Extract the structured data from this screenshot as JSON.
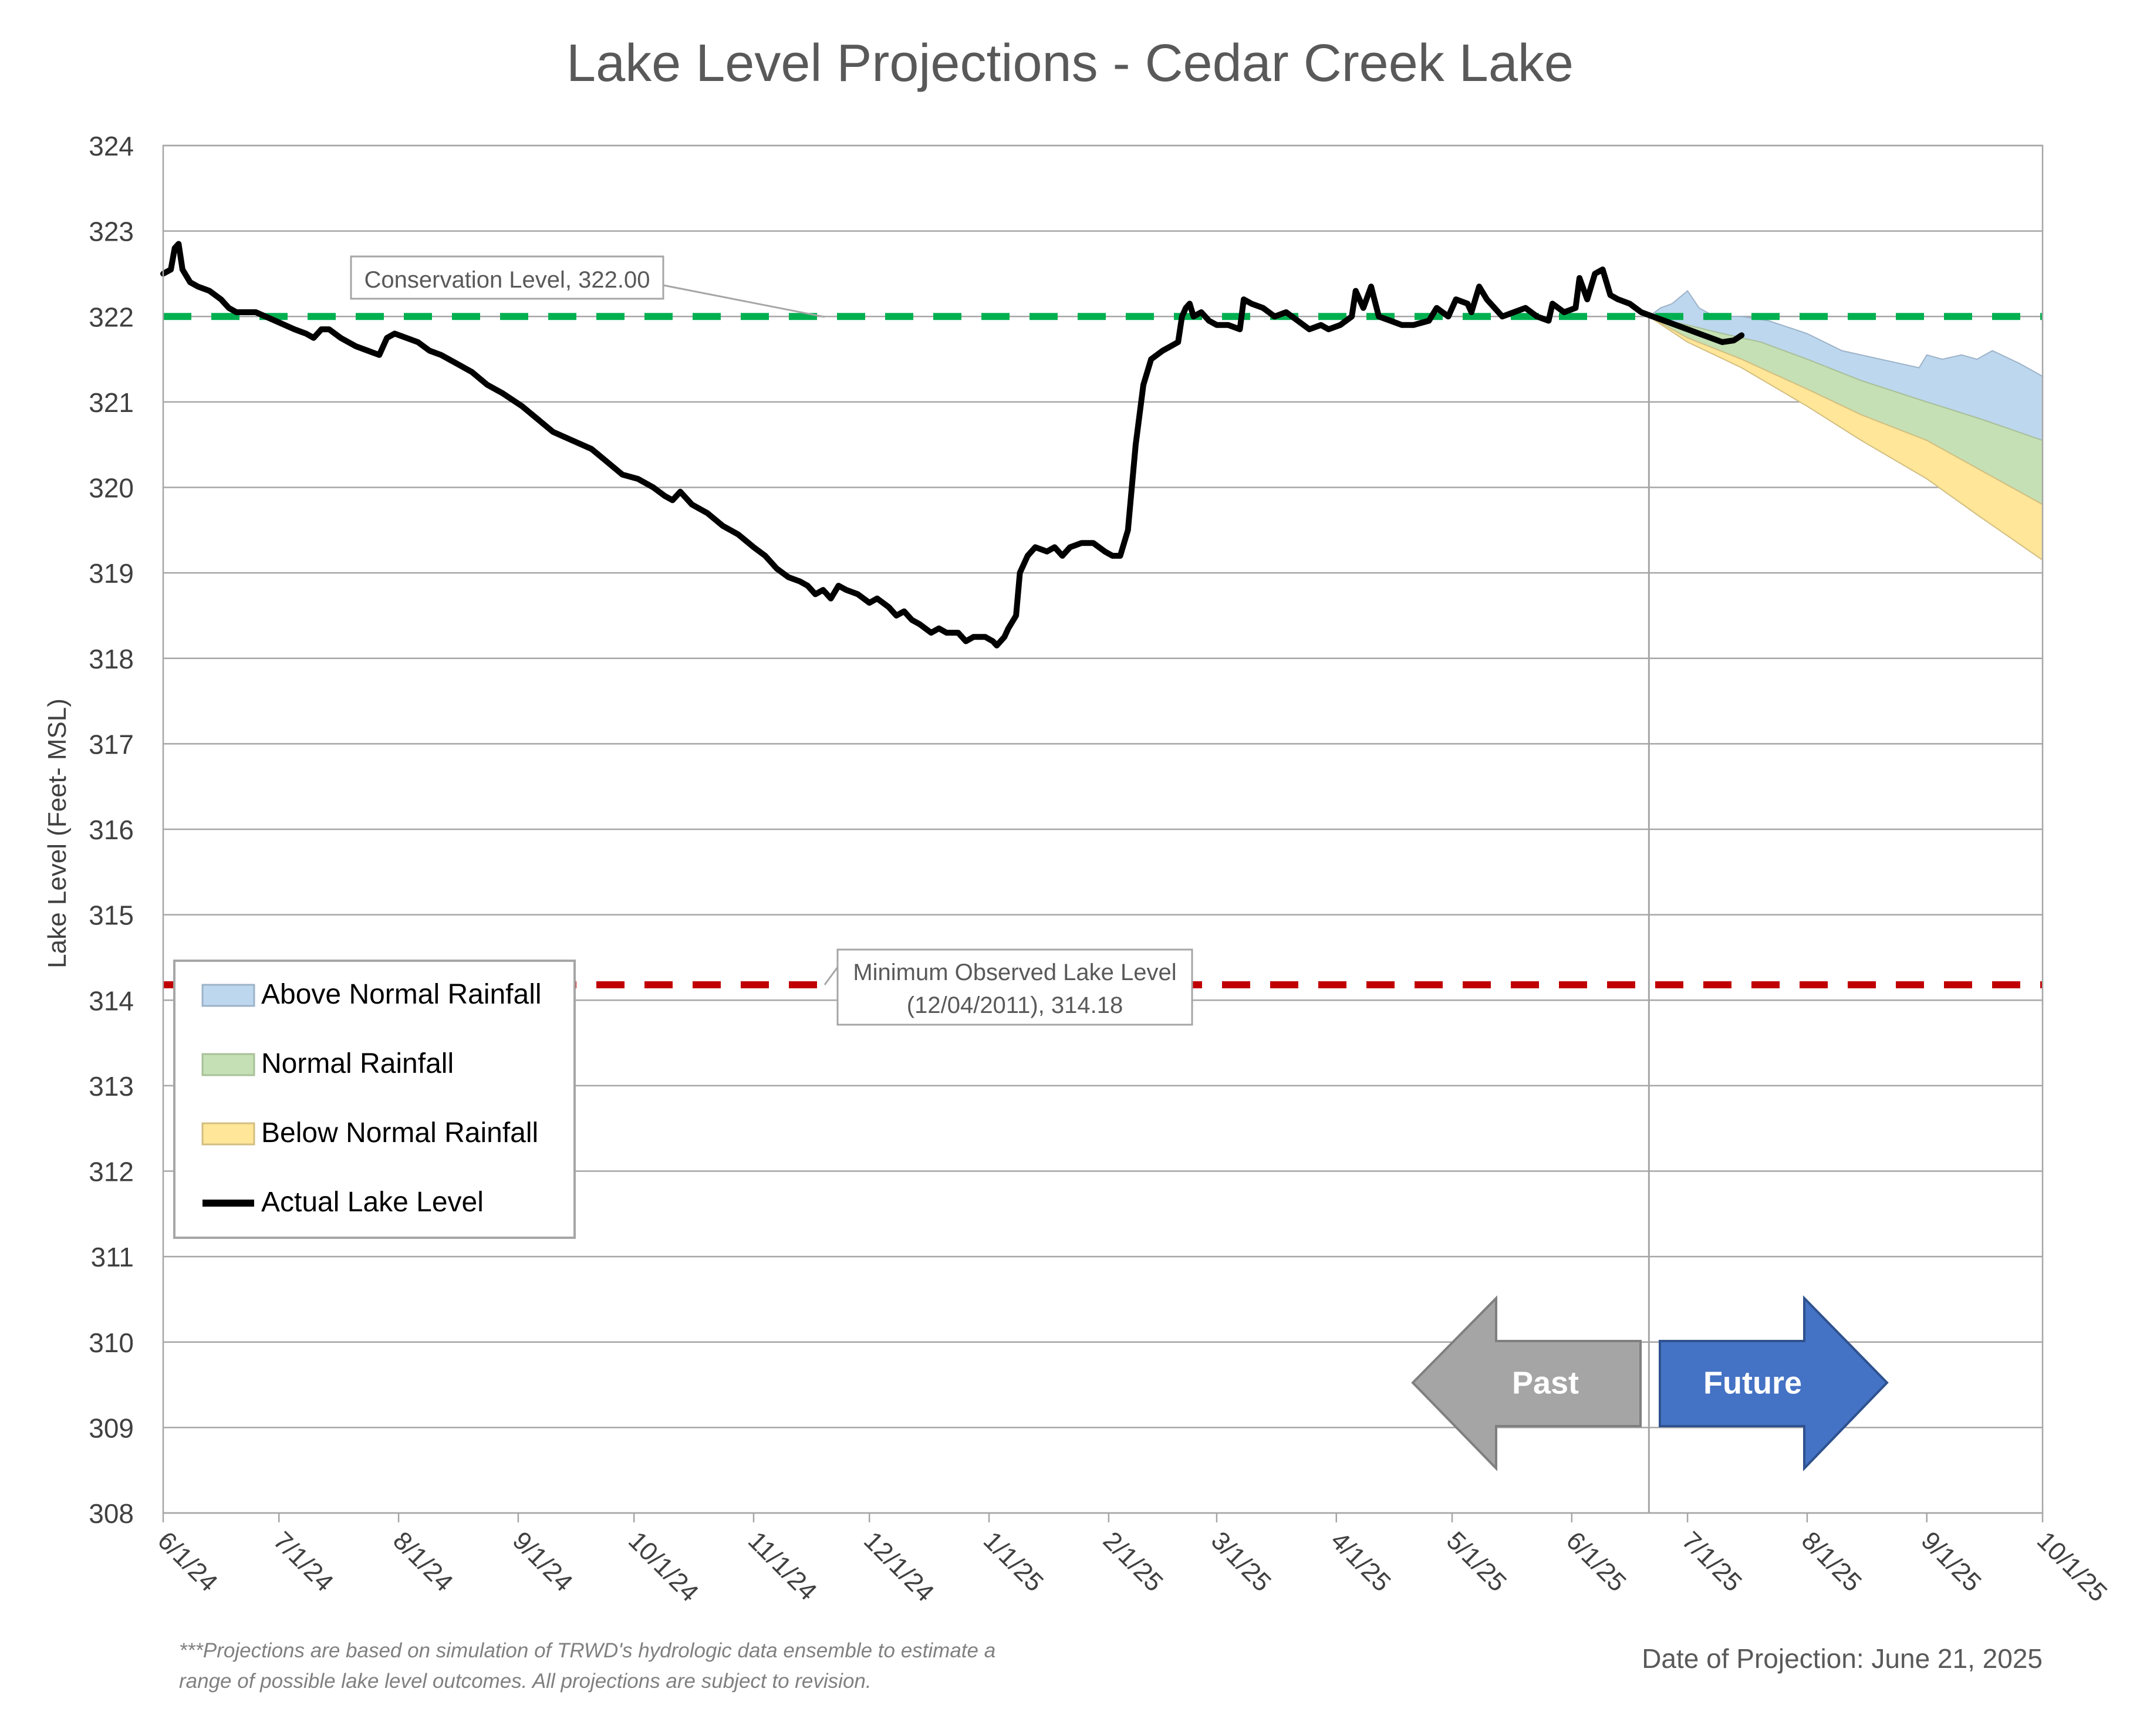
{
  "chart_data": {
    "type": "line",
    "title": "Lake Level Projections - Cedar Creek Lake",
    "ylabel": "Lake Level (Feet- MSL)",
    "xlabel": "",
    "ylim": [
      308,
      324
    ],
    "y_ticks": [
      308,
      309,
      310,
      311,
      312,
      313,
      314,
      315,
      316,
      317,
      318,
      319,
      320,
      321,
      322,
      323,
      324
    ],
    "x_range": [
      "2024-06-01",
      "2025-10-01"
    ],
    "x_ticks": [
      {
        "date": "2024-06-01",
        "label": "6/1/24"
      },
      {
        "date": "2024-07-01",
        "label": "7/1/24"
      },
      {
        "date": "2024-08-01",
        "label": "8/1/24"
      },
      {
        "date": "2024-09-01",
        "label": "9/1/24"
      },
      {
        "date": "2024-10-01",
        "label": "10/1/24"
      },
      {
        "date": "2024-11-01",
        "label": "11/1/24"
      },
      {
        "date": "2024-12-01",
        "label": "12/1/24"
      },
      {
        "date": "2025-01-01",
        "label": "1/1/25"
      },
      {
        "date": "2025-02-01",
        "label": "2/1/25"
      },
      {
        "date": "2025-03-01",
        "label": "3/1/25"
      },
      {
        "date": "2025-04-01",
        "label": "4/1/25"
      },
      {
        "date": "2025-05-01",
        "label": "5/1/25"
      },
      {
        "date": "2025-06-01",
        "label": "6/1/25"
      },
      {
        "date": "2025-07-01",
        "label": "7/1/25"
      },
      {
        "date": "2025-08-01",
        "label": "8/1/25"
      },
      {
        "date": "2025-09-01",
        "label": "9/1/25"
      },
      {
        "date": "2025-10-01",
        "label": "10/1/25"
      }
    ],
    "grid": true,
    "projection_date": "2025-06-21",
    "reference_lines": [
      {
        "id": "conservation",
        "value": 322.0,
        "color": "#00B050",
        "label": "Conservation Level, 322.00"
      },
      {
        "id": "minimum",
        "value": 314.18,
        "color": "#C00000",
        "label": "Minimum Observed Lake Level (12/04/2011), 314.18",
        "label_lines": [
          "Minimum Observed Lake Level",
          "(12/04/2011), 314.18"
        ]
      }
    ],
    "bands": [
      {
        "name": "Above Normal Rainfall",
        "color": "#BDD7EE",
        "stroke": "#9DB3C8",
        "upper": [
          [
            "2025-06-21",
            322.0
          ],
          [
            "2025-06-24",
            322.1
          ],
          [
            "2025-06-27",
            322.15
          ],
          [
            "2025-07-01",
            322.3
          ],
          [
            "2025-07-04",
            322.1
          ],
          [
            "2025-07-08",
            322.0
          ],
          [
            "2025-07-15",
            322.0
          ],
          [
            "2025-07-22",
            321.95
          ],
          [
            "2025-08-01",
            321.8
          ],
          [
            "2025-08-10",
            321.6
          ],
          [
            "2025-08-20",
            321.5
          ],
          [
            "2025-08-25",
            321.45
          ],
          [
            "2025-08-30",
            321.4
          ],
          [
            "2025-09-01",
            321.55
          ],
          [
            "2025-09-05",
            321.5
          ],
          [
            "2025-09-10",
            321.55
          ],
          [
            "2025-09-14",
            321.5
          ],
          [
            "2025-09-18",
            321.6
          ],
          [
            "2025-09-25",
            321.45
          ],
          [
            "2025-10-01",
            321.3
          ]
        ],
        "lower": [
          [
            "2025-06-21",
            322.0
          ],
          [
            "2025-07-01",
            321.9
          ],
          [
            "2025-07-10",
            321.8
          ],
          [
            "2025-07-20",
            321.7
          ],
          [
            "2025-08-01",
            321.5
          ],
          [
            "2025-08-15",
            321.25
          ],
          [
            "2025-09-01",
            321.0
          ],
          [
            "2025-09-15",
            320.8
          ],
          [
            "2025-10-01",
            320.55
          ]
        ]
      },
      {
        "name": "Normal Rainfall",
        "color": "#C5E0B4",
        "stroke": "#A8C098",
        "upper": [
          [
            "2025-06-21",
            322.0
          ],
          [
            "2025-07-01",
            321.9
          ],
          [
            "2025-07-10",
            321.8
          ],
          [
            "2025-07-20",
            321.7
          ],
          [
            "2025-08-01",
            321.5
          ],
          [
            "2025-08-15",
            321.25
          ],
          [
            "2025-09-01",
            321.0
          ],
          [
            "2025-09-15",
            320.8
          ],
          [
            "2025-10-01",
            320.55
          ]
        ],
        "lower": [
          [
            "2025-06-21",
            322.0
          ],
          [
            "2025-07-01",
            321.75
          ],
          [
            "2025-07-15",
            321.5
          ],
          [
            "2025-08-01",
            321.15
          ],
          [
            "2025-08-15",
            320.85
          ],
          [
            "2025-09-01",
            320.55
          ],
          [
            "2025-09-15",
            320.2
          ],
          [
            "2025-10-01",
            319.8
          ]
        ]
      },
      {
        "name": "Below Normal Rainfall",
        "color": "#FFE699",
        "stroke": "#D2BE80",
        "upper": [
          [
            "2025-06-21",
            322.0
          ],
          [
            "2025-07-01",
            321.75
          ],
          [
            "2025-07-15",
            321.5
          ],
          [
            "2025-08-01",
            321.15
          ],
          [
            "2025-08-15",
            320.85
          ],
          [
            "2025-09-01",
            320.55
          ],
          [
            "2025-09-15",
            320.2
          ],
          [
            "2025-10-01",
            319.8
          ]
        ],
        "lower": [
          [
            "2025-06-21",
            322.0
          ],
          [
            "2025-07-01",
            321.7
          ],
          [
            "2025-07-15",
            321.4
          ],
          [
            "2025-08-01",
            320.95
          ],
          [
            "2025-08-15",
            320.55
          ],
          [
            "2025-09-01",
            320.1
          ],
          [
            "2025-09-15",
            319.65
          ],
          [
            "2025-10-01",
            319.15
          ]
        ]
      }
    ],
    "series": [
      {
        "name": "Actual Lake Level",
        "color": "#000000",
        "points": [
          [
            "2024-06-01",
            322.5
          ],
          [
            "2024-06-03",
            322.55
          ],
          [
            "2024-06-04",
            322.8
          ],
          [
            "2024-06-05",
            322.85
          ],
          [
            "2024-06-06",
            322.55
          ],
          [
            "2024-06-08",
            322.4
          ],
          [
            "2024-06-10",
            322.35
          ],
          [
            "2024-06-13",
            322.3
          ],
          [
            "2024-06-16",
            322.2
          ],
          [
            "2024-06-18",
            322.1
          ],
          [
            "2024-06-20",
            322.05
          ],
          [
            "2024-06-25",
            322.05
          ],
          [
            "2024-06-30",
            321.95
          ],
          [
            "2024-07-05",
            321.85
          ],
          [
            "2024-07-08",
            321.8
          ],
          [
            "2024-07-10",
            321.75
          ],
          [
            "2024-07-12",
            321.85
          ],
          [
            "2024-07-14",
            321.85
          ],
          [
            "2024-07-17",
            321.75
          ],
          [
            "2024-07-21",
            321.65
          ],
          [
            "2024-07-24",
            321.6
          ],
          [
            "2024-07-27",
            321.55
          ],
          [
            "2024-07-29",
            321.75
          ],
          [
            "2024-07-31",
            321.8
          ],
          [
            "2024-08-03",
            321.75
          ],
          [
            "2024-08-06",
            321.7
          ],
          [
            "2024-08-09",
            321.6
          ],
          [
            "2024-08-12",
            321.55
          ],
          [
            "2024-08-16",
            321.45
          ],
          [
            "2024-08-20",
            321.35
          ],
          [
            "2024-08-24",
            321.2
          ],
          [
            "2024-08-28",
            321.1
          ],
          [
            "2024-09-02",
            320.95
          ],
          [
            "2024-09-06",
            320.8
          ],
          [
            "2024-09-10",
            320.65
          ],
          [
            "2024-09-15",
            320.55
          ],
          [
            "2024-09-20",
            320.45
          ],
          [
            "2024-09-24",
            320.3
          ],
          [
            "2024-09-28",
            320.15
          ],
          [
            "2024-10-02",
            320.1
          ],
          [
            "2024-10-06",
            320.0
          ],
          [
            "2024-10-09",
            319.9
          ],
          [
            "2024-10-11",
            319.85
          ],
          [
            "2024-10-13",
            319.95
          ],
          [
            "2024-10-16",
            319.8
          ],
          [
            "2024-10-20",
            319.7
          ],
          [
            "2024-10-24",
            319.55
          ],
          [
            "2024-10-28",
            319.45
          ],
          [
            "2024-11-01",
            319.3
          ],
          [
            "2024-11-04",
            319.2
          ],
          [
            "2024-11-07",
            319.05
          ],
          [
            "2024-11-10",
            318.95
          ],
          [
            "2024-11-13",
            318.9
          ],
          [
            "2024-11-15",
            318.85
          ],
          [
            "2024-11-17",
            318.75
          ],
          [
            "2024-11-19",
            318.8
          ],
          [
            "2024-11-21",
            318.7
          ],
          [
            "2024-11-23",
            318.85
          ],
          [
            "2024-11-25",
            318.8
          ],
          [
            "2024-11-28",
            318.75
          ],
          [
            "2024-12-01",
            318.65
          ],
          [
            "2024-12-03",
            318.7
          ],
          [
            "2024-12-06",
            318.6
          ],
          [
            "2024-12-08",
            318.5
          ],
          [
            "2024-12-10",
            318.55
          ],
          [
            "2024-12-12",
            318.45
          ],
          [
            "2024-12-14",
            318.4
          ],
          [
            "2024-12-17",
            318.3
          ],
          [
            "2024-12-19",
            318.35
          ],
          [
            "2024-12-21",
            318.3
          ],
          [
            "2024-12-24",
            318.3
          ],
          [
            "2024-12-26",
            318.2
          ],
          [
            "2024-12-28",
            318.25
          ],
          [
            "2024-12-31",
            318.25
          ],
          [
            "2025-01-02",
            318.2
          ],
          [
            "2025-01-03",
            318.15
          ],
          [
            "2025-01-05",
            318.25
          ],
          [
            "2025-01-06",
            318.35
          ],
          [
            "2025-01-08",
            318.5
          ],
          [
            "2025-01-09",
            319.0
          ],
          [
            "2025-01-11",
            319.2
          ],
          [
            "2025-01-13",
            319.3
          ],
          [
            "2025-01-16",
            319.25
          ],
          [
            "2025-01-18",
            319.3
          ],
          [
            "2025-01-20",
            319.2
          ],
          [
            "2025-01-22",
            319.3
          ],
          [
            "2025-01-25",
            319.35
          ],
          [
            "2025-01-28",
            319.35
          ],
          [
            "2025-01-31",
            319.25
          ],
          [
            "2025-02-02",
            319.2
          ],
          [
            "2025-02-04",
            319.2
          ],
          [
            "2025-02-06",
            319.5
          ],
          [
            "2025-02-08",
            320.5
          ],
          [
            "2025-02-10",
            321.2
          ],
          [
            "2025-02-12",
            321.5
          ],
          [
            "2025-02-15",
            321.6
          ],
          [
            "2025-02-17",
            321.65
          ],
          [
            "2025-02-19",
            321.7
          ],
          [
            "2025-02-20",
            322.0
          ],
          [
            "2025-02-21",
            322.1
          ],
          [
            "2025-02-22",
            322.15
          ],
          [
            "2025-02-23",
            322.0
          ],
          [
            "2025-02-25",
            322.05
          ],
          [
            "2025-02-27",
            321.95
          ],
          [
            "2025-03-01",
            321.9
          ],
          [
            "2025-03-04",
            321.9
          ],
          [
            "2025-03-07",
            321.85
          ],
          [
            "2025-03-08",
            322.2
          ],
          [
            "2025-03-10",
            322.15
          ],
          [
            "2025-03-13",
            322.1
          ],
          [
            "2025-03-16",
            322.0
          ],
          [
            "2025-03-19",
            322.05
          ],
          [
            "2025-03-22",
            321.95
          ],
          [
            "2025-03-25",
            321.85
          ],
          [
            "2025-03-28",
            321.9
          ],
          [
            "2025-03-30",
            321.85
          ],
          [
            "2025-04-02",
            321.9
          ],
          [
            "2025-04-05",
            322.0
          ],
          [
            "2025-04-06",
            322.3
          ],
          [
            "2025-04-08",
            322.1
          ],
          [
            "2025-04-10",
            322.35
          ],
          [
            "2025-04-12",
            322.0
          ],
          [
            "2025-04-15",
            321.95
          ],
          [
            "2025-04-18",
            321.9
          ],
          [
            "2025-04-21",
            321.9
          ],
          [
            "2025-04-25",
            321.95
          ],
          [
            "2025-04-27",
            322.1
          ],
          [
            "2025-04-30",
            322.0
          ],
          [
            "2025-05-02",
            322.2
          ],
          [
            "2025-05-05",
            322.15
          ],
          [
            "2025-05-06",
            322.05
          ],
          [
            "2025-05-08",
            322.35
          ],
          [
            "2025-05-10",
            322.2
          ],
          [
            "2025-05-14",
            322.0
          ],
          [
            "2025-05-17",
            322.05
          ],
          [
            "2025-05-20",
            322.1
          ],
          [
            "2025-05-23",
            322.0
          ],
          [
            "2025-05-26",
            321.95
          ],
          [
            "2025-05-27",
            322.15
          ],
          [
            "2025-05-30",
            322.05
          ],
          [
            "2025-06-02",
            322.1
          ],
          [
            "2025-06-03",
            322.45
          ],
          [
            "2025-06-05",
            322.2
          ],
          [
            "2025-06-07",
            322.5
          ],
          [
            "2025-06-09",
            322.55
          ],
          [
            "2025-06-11",
            322.25
          ],
          [
            "2025-06-13",
            322.2
          ],
          [
            "2025-06-16",
            322.15
          ],
          [
            "2025-06-19",
            322.05
          ],
          [
            "2025-06-22",
            322.0
          ],
          [
            "2025-06-25",
            321.95
          ],
          [
            "2025-06-28",
            321.9
          ],
          [
            "2025-07-01",
            321.85
          ],
          [
            "2025-07-04",
            321.8
          ],
          [
            "2025-07-07",
            321.75
          ],
          [
            "2025-07-10",
            321.7
          ],
          [
            "2025-07-13",
            321.72
          ],
          [
            "2025-07-15",
            321.78
          ]
        ]
      }
    ],
    "legend": {
      "placement": "left",
      "entries": [
        {
          "name": "Above Normal Rainfall",
          "kind": "area",
          "color": "#BDD7EE",
          "stroke": "#9DB3C8"
        },
        {
          "name": "Normal Rainfall",
          "kind": "area",
          "color": "#C5E0B4",
          "stroke": "#A8C098"
        },
        {
          "name": "Below Normal Rainfall",
          "kind": "area",
          "color": "#FFE699",
          "stroke": "#D2BE80"
        },
        {
          "name": "Actual Lake Level",
          "kind": "line",
          "color": "#000000"
        }
      ]
    },
    "arrows": [
      {
        "label": "Past",
        "direction": "left",
        "color": "#A5A5A5",
        "stroke": "#7F7F7F"
      },
      {
        "label": "Future",
        "direction": "right",
        "color": "#4472C4",
        "stroke": "#2F528F"
      }
    ]
  },
  "footer": {
    "note_line1": "***Projections are based on simulation of TRWD's hydrologic data ensemble to estimate a",
    "note_line2": "range of possible lake level outcomes.  All projections are subject to revision.",
    "projection_date_text": "Date of Projection: June 21, 2025"
  }
}
